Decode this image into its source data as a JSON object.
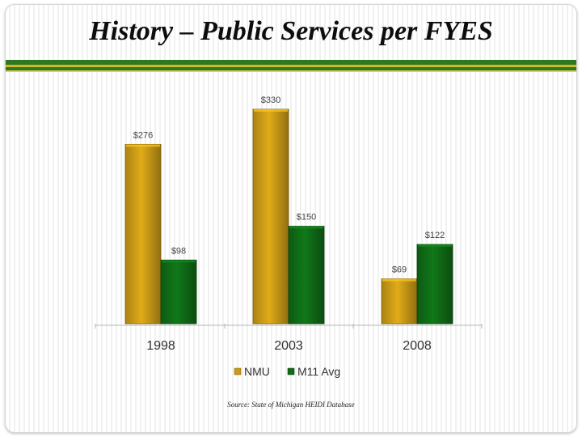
{
  "slide": {
    "title": "History – Public Services per FYES",
    "source": "Source: State of Michigan HEIDI Database"
  },
  "colors": {
    "nmu": "#c99a16",
    "m11": "#0f6b16",
    "band_green": "#2b7a1f",
    "band_gold": "#d4b62a"
  },
  "chart_data": {
    "type": "bar",
    "title": "History – Public Services per FYES",
    "categories": [
      "1998",
      "2003",
      "2008"
    ],
    "series": [
      {
        "name": "NMU",
        "values": [
          276,
          330,
          69
        ],
        "labels": [
          "$276",
          "$330",
          "$69"
        ],
        "color": "#c99a16"
      },
      {
        "name": "M11 Avg",
        "values": [
          98,
          150,
          122
        ],
        "labels": [
          "$98",
          "$150",
          "$122"
        ],
        "color": "#0f6b16"
      }
    ],
    "ylim": [
      0,
      330
    ],
    "xlabel": "",
    "ylabel": "",
    "grid": false,
    "legend": "bottom"
  }
}
